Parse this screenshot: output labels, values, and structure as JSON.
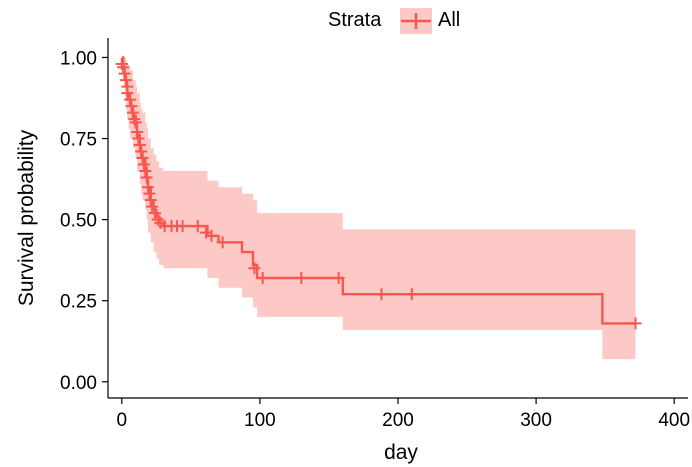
{
  "chart_data": {
    "type": "line",
    "subtype": "kaplan-meier-step",
    "title": "",
    "xlabel": "day",
    "ylabel": "Survival probability",
    "xlim": [
      -10,
      410
    ],
    "ylim": [
      -0.05,
      1.06
    ],
    "x_ticks": [
      0,
      100,
      200,
      300,
      400
    ],
    "x_tick_labels": [
      "0",
      "100",
      "200",
      "300",
      "400"
    ],
    "y_ticks": [
      0,
      0.25,
      0.5,
      0.75,
      1.0
    ],
    "y_tick_labels": [
      "0.00",
      "0.25",
      "0.50",
      "0.75",
      "1.00"
    ],
    "grid": false,
    "legend": {
      "title": "Strata",
      "position": "top",
      "entries": [
        "All"
      ]
    },
    "colors": {
      "line": "#f8574f",
      "band": "#fdc9c6"
    },
    "series": [
      {
        "name": "All",
        "steps": [
          {
            "x": 0,
            "y": 1.0,
            "lo": 1.0,
            "hi": 1.0
          },
          {
            "x": 1,
            "y": 0.97,
            "lo": 0.93,
            "hi": 1.0
          },
          {
            "x": 2,
            "y": 0.94,
            "lo": 0.88,
            "hi": 1.0
          },
          {
            "x": 3,
            "y": 0.91,
            "lo": 0.84,
            "hi": 0.99
          },
          {
            "x": 4,
            "y": 0.89,
            "lo": 0.81,
            "hi": 0.98
          },
          {
            "x": 5,
            "y": 0.87,
            "lo": 0.78,
            "hi": 0.97
          },
          {
            "x": 6,
            "y": 0.85,
            "lo": 0.75,
            "hi": 0.96
          },
          {
            "x": 8,
            "y": 0.82,
            "lo": 0.72,
            "hi": 0.93
          },
          {
            "x": 10,
            "y": 0.8,
            "lo": 0.69,
            "hi": 0.91
          },
          {
            "x": 11,
            "y": 0.76,
            "lo": 0.65,
            "hi": 0.89
          },
          {
            "x": 13,
            "y": 0.73,
            "lo": 0.61,
            "hi": 0.86
          },
          {
            "x": 14,
            "y": 0.71,
            "lo": 0.58,
            "hi": 0.84
          },
          {
            "x": 15,
            "y": 0.69,
            "lo": 0.56,
            "hi": 0.83
          },
          {
            "x": 17,
            "y": 0.66,
            "lo": 0.53,
            "hi": 0.8
          },
          {
            "x": 18,
            "y": 0.63,
            "lo": 0.5,
            "hi": 0.78
          },
          {
            "x": 19,
            "y": 0.6,
            "lo": 0.46,
            "hi": 0.75
          },
          {
            "x": 21,
            "y": 0.56,
            "lo": 0.43,
            "hi": 0.72
          },
          {
            "x": 23,
            "y": 0.53,
            "lo": 0.4,
            "hi": 0.7
          },
          {
            "x": 25,
            "y": 0.51,
            "lo": 0.38,
            "hi": 0.68
          },
          {
            "x": 27,
            "y": 0.49,
            "lo": 0.36,
            "hi": 0.66
          },
          {
            "x": 30,
            "y": 0.48,
            "lo": 0.35,
            "hi": 0.65
          },
          {
            "x": 45,
            "y": 0.48,
            "lo": 0.35,
            "hi": 0.65
          },
          {
            "x": 62,
            "y": 0.45,
            "lo": 0.32,
            "hi": 0.62
          },
          {
            "x": 70,
            "y": 0.43,
            "lo": 0.29,
            "hi": 0.6
          },
          {
            "x": 87,
            "y": 0.4,
            "lo": 0.26,
            "hi": 0.58
          },
          {
            "x": 95,
            "y": 0.36,
            "lo": 0.23,
            "hi": 0.56
          },
          {
            "x": 98,
            "y": 0.32,
            "lo": 0.2,
            "hi": 0.52
          },
          {
            "x": 160,
            "y": 0.27,
            "lo": 0.16,
            "hi": 0.47
          },
          {
            "x": 348,
            "y": 0.18,
            "lo": 0.07,
            "hi": 0.47
          }
        ],
        "x_end": 372,
        "censor_marks": [
          {
            "x": 0,
            "y": 0.98
          },
          {
            "x": 1,
            "y": 0.97
          },
          {
            "x": 2,
            "y": 0.95
          },
          {
            "x": 3,
            "y": 0.93
          },
          {
            "x": 4,
            "y": 0.91
          },
          {
            "x": 4,
            "y": 0.89
          },
          {
            "x": 6,
            "y": 0.87
          },
          {
            "x": 7,
            "y": 0.85
          },
          {
            "x": 8,
            "y": 0.83
          },
          {
            "x": 9,
            "y": 0.81
          },
          {
            "x": 10,
            "y": 0.8
          },
          {
            "x": 11,
            "y": 0.77
          },
          {
            "x": 12,
            "y": 0.75
          },
          {
            "x": 13,
            "y": 0.73
          },
          {
            "x": 14,
            "y": 0.71
          },
          {
            "x": 15,
            "y": 0.69
          },
          {
            "x": 16,
            "y": 0.67
          },
          {
            "x": 17,
            "y": 0.65
          },
          {
            "x": 18,
            "y": 0.63
          },
          {
            "x": 19,
            "y": 0.6
          },
          {
            "x": 20,
            "y": 0.58
          },
          {
            "x": 21,
            "y": 0.56
          },
          {
            "x": 22,
            "y": 0.54
          },
          {
            "x": 24,
            "y": 0.52
          },
          {
            "x": 26,
            "y": 0.5
          },
          {
            "x": 28,
            "y": 0.49
          },
          {
            "x": 31,
            "y": 0.48
          },
          {
            "x": 36,
            "y": 0.48
          },
          {
            "x": 40,
            "y": 0.48
          },
          {
            "x": 44,
            "y": 0.48
          },
          {
            "x": 55,
            "y": 0.48
          },
          {
            "x": 61,
            "y": 0.46
          },
          {
            "x": 65,
            "y": 0.45
          },
          {
            "x": 73,
            "y": 0.43
          },
          {
            "x": 96,
            "y": 0.35
          },
          {
            "x": 102,
            "y": 0.32
          },
          {
            "x": 130,
            "y": 0.32
          },
          {
            "x": 157,
            "y": 0.32
          },
          {
            "x": 188,
            "y": 0.27
          },
          {
            "x": 210,
            "y": 0.27
          },
          {
            "x": 372,
            "y": 0.18
          }
        ]
      }
    ]
  }
}
